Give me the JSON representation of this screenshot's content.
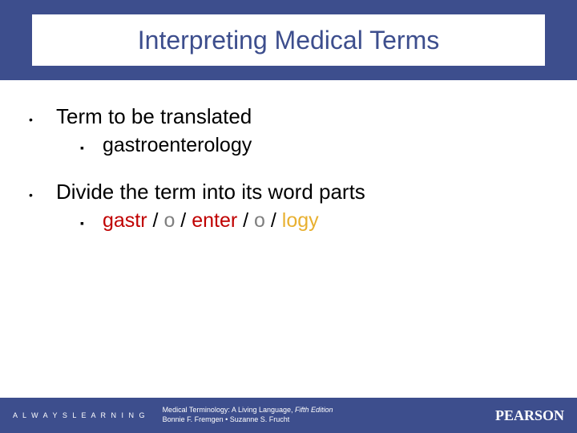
{
  "colors": {
    "band": "#3d4e8d",
    "title_text": "#3d4e8d",
    "body_text": "#000000",
    "wp_root": "#c00000",
    "wp_cv": "#7f7f7f",
    "wp_suffix": "#e8b030",
    "footer_text": "#ffffff",
    "background": "#ffffff"
  },
  "title": "Interpreting Medical Terms",
  "bullets": [
    {
      "text": "Term to be translated",
      "sub": {
        "plain": "gastroenterology"
      }
    },
    {
      "text": "Divide the term into its word parts",
      "sub": {
        "parts": [
          "gastr",
          "o",
          "enter",
          "o",
          "logy"
        ],
        "sep": " / "
      }
    }
  ],
  "footer": {
    "left": "A L W A Y S   L E A R N I N G",
    "book_title": "Medical Terminology: A Living Language, ",
    "edition": "Fifth Edition",
    "authors": "Bonnie F. Fremgen • Suzanne S. Frucht",
    "publisher": "PEARSON"
  },
  "typography": {
    "title_fontsize": 32,
    "bullet_fontsize": 26,
    "sub_fontsize": 25,
    "footer_small": 9,
    "publisher_fontsize": 18
  }
}
